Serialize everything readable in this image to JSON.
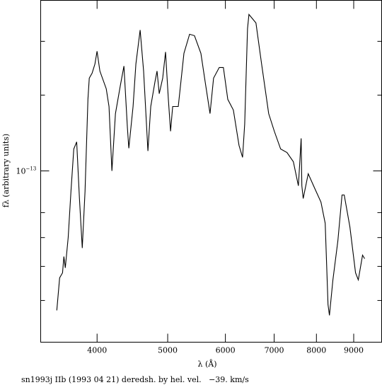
{
  "chart_data": {
    "type": "line",
    "caption": "sn1993j IIb (1993 04 21) deredsh. by hel. vel.   −39. km/s",
    "xlabel": "λ (Å)",
    "ylabel": "fλ (arbitrary units)",
    "log_x": true,
    "log_y": true,
    "color": "#000000",
    "xlim": [
      3347,
      9831
    ],
    "ylim": [
      4e-14,
      2.49e-13
    ],
    "xticks": [
      4000,
      5000,
      6000,
      7000,
      8000,
      9000
    ],
    "yticks": [
      {
        "value": 1e-13,
        "label": "10",
        "exponent": "−13"
      }
    ],
    "yminor": [
      5e-14,
      6e-14,
      7e-14,
      8e-14,
      1.5e-13,
      2e-13
    ],
    "x": [
      3522,
      3554,
      3586,
      3602,
      3618,
      3651,
      3683,
      3716,
      3750,
      3783,
      3817,
      3851,
      3886,
      3903,
      3938,
      3973,
      4000,
      4036,
      4118,
      4154,
      4192,
      4239,
      4306,
      4354,
      4402,
      4422,
      4482,
      4522,
      4583,
      4634,
      4697,
      4739,
      4803,
      4835,
      4868,
      4922,
      4966,
      5011,
      5045,
      5079,
      5170,
      5263,
      5358,
      5442,
      5553,
      5628,
      5716,
      5780,
      5884,
      5963,
      6045,
      6153,
      6264,
      6335,
      6377,
      6435,
      6463,
      6608,
      6728,
      6880,
      7003,
      7145,
      7290,
      7438,
      7556,
      7589,
      7622,
      7640,
      7673,
      7795,
      7952,
      8115,
      8224,
      8298,
      8335,
      8427,
      8560,
      8675,
      8734,
      8892,
      9053,
      9132,
      9255,
      9317
    ],
    "values": [
      4.742e-14,
      5.644e-14,
      5.797e-14,
      6.324e-14,
      5.952e-14,
      7.004e-14,
      8.96e-14,
      1.1245e-13,
      1.1679e-13,
      8.627e-14,
      6.617e-14,
      8.96e-14,
      1.466e-13,
      1.6424e-13,
      1.6865e-13,
      1.7715e-13,
      1.8967e-13,
      1.7057e-13,
      1.551e-13,
      1.4113e-13,
      1e-13,
      1.3589e-13,
      1.5812e-13,
      1.7518e-13,
      1.2597e-13,
      1.1288e-13,
      1.4113e-13,
      1.7715e-13,
      2.125e-13,
      1.7057e-13,
      1.112e-13,
      1.4113e-13,
      1.6114e-13,
      1.7057e-13,
      1.5112e-13,
      1.6424e-13,
      1.8892e-13,
      1.466e-13,
      1.236e-13,
      1.4113e-13,
      1.4113e-13,
      1.875e-13,
      2.0771e-13,
      2.0615e-13,
      1.875e-13,
      1.6114e-13,
      1.3589e-13,
      1.6424e-13,
      1.7386e-13,
      1.7386e-13,
      1.466e-13,
      1.3848e-13,
      1.1461e-13,
      1.0747e-13,
      1.284e-13,
      2.141e-13,
      2.3093e-13,
      2.2071e-13,
      1.7715e-13,
      1.3589e-13,
      1.236e-13,
      1.1245e-13,
      1.1035e-13,
      1.0505e-13,
      9.236e-14,
      1.0426e-13,
      1.1903e-13,
      9.236e-14,
      8.627e-14,
      9.849e-14,
      9.132e-14,
      8.465e-14,
      7.557e-14,
      4.889e-14,
      4.617e-14,
      5.581e-14,
      6.873e-14,
      8.792e-14,
      8.792e-14,
      7.413e-14,
      5.797e-14,
      5.581e-14,
      6.372e-14,
      6.252e-14
    ]
  }
}
